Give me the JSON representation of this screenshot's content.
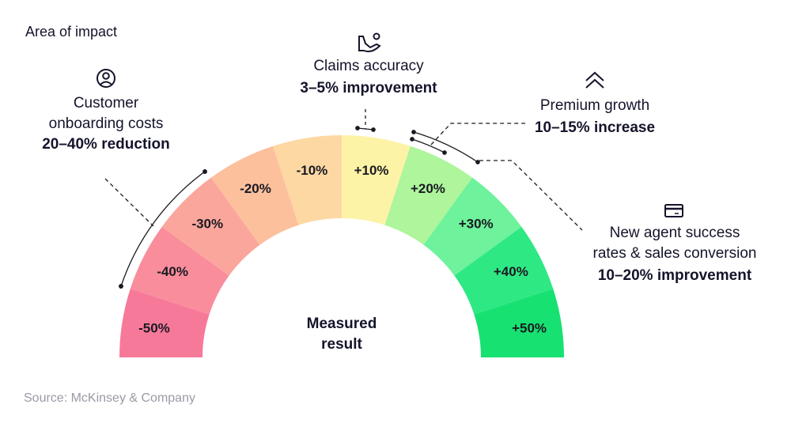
{
  "title": "Area of impact",
  "source": "Source: McKinsey & Company",
  "center_label": [
    "Measured",
    "result"
  ],
  "chart_data": {
    "type": "gauge",
    "title": "Area of impact",
    "center_label": "Measured result",
    "segments": [
      {
        "label": "-50%",
        "value": -50,
        "color": "#f7799a"
      },
      {
        "label": "-40%",
        "value": -40,
        "color": "#f98d9b"
      },
      {
        "label": "-30%",
        "value": -30,
        "color": "#fba69c"
      },
      {
        "label": "-20%",
        "value": -20,
        "color": "#fcc09d"
      },
      {
        "label": "-10%",
        "value": -10,
        "color": "#fdd8a3"
      },
      {
        "label": "+10%",
        "value": 10,
        "color": "#fdf3a6"
      },
      {
        "label": "+20%",
        "value": 20,
        "color": "#aef59c"
      },
      {
        "label": "+30%",
        "value": 30,
        "color": "#6ef29b"
      },
      {
        "label": "+40%",
        "value": 40,
        "color": "#2ee884"
      },
      {
        "label": "+50%",
        "value": 50,
        "color": "#17e271"
      }
    ],
    "annotations": [
      {
        "icon": "user-circle-icon",
        "area": [
          "Customer",
          "onboarding costs"
        ],
        "result": "20–40% reduction",
        "range": [
          -40,
          -20
        ]
      },
      {
        "icon": "hand-coin-icon",
        "area": [
          "Claims accuracy"
        ],
        "result": "3–5% improvement",
        "range": [
          3,
          5
        ]
      },
      {
        "icon": "double-chevron-up-icon",
        "area": [
          "Premium growth"
        ],
        "result": "10–15% increase",
        "range": [
          10,
          15
        ]
      },
      {
        "icon": "credit-card-icon",
        "area": [
          "New agent success",
          "rates & sales conversion"
        ],
        "result": "10–20% improvement",
        "range": [
          10,
          20
        ]
      }
    ]
  }
}
